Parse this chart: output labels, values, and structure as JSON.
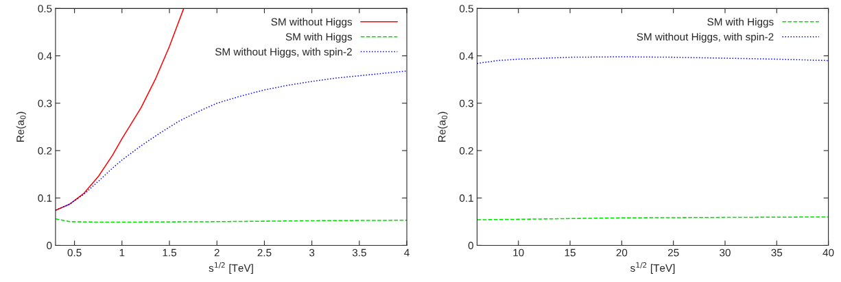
{
  "chart_data": [
    {
      "type": "line",
      "xlabel": "s$^{1/2}$ [TeV]",
      "ylabel": "Re(a$_{0}$)",
      "xlim": [
        0.3,
        4
      ],
      "ylim": [
        0,
        0.5
      ],
      "xticks": [
        0.5,
        1,
        1.5,
        2,
        2.5,
        3,
        3.5,
        4
      ],
      "yticks": [
        0,
        0.1,
        0.2,
        0.3,
        0.4,
        0.5
      ],
      "grid": false,
      "legend": "top right",
      "series": [
        {
          "name": "SM without Higgs",
          "color": "#ff0000",
          "line_style": "solid",
          "x": [
            0.3,
            0.45,
            0.6,
            0.75,
            0.9,
            1.0,
            1.2,
            1.35,
            1.5,
            1.65
          ],
          "values": [
            0.074,
            0.087,
            0.11,
            0.145,
            0.19,
            0.225,
            0.29,
            0.35,
            0.42,
            0.5
          ]
        },
        {
          "name": "SM with Higgs",
          "color": "#00dd00",
          "line_style": "dashed",
          "x": [
            0.3,
            0.45,
            0.75,
            1,
            2,
            3,
            4
          ],
          "values": [
            0.056,
            0.05,
            0.049,
            0.049,
            0.05,
            0.052,
            0.053
          ]
        },
        {
          "name": "SM without Higgs, with spin-2",
          "color": "#0000ff",
          "line_style": "dotted",
          "x": [
            0.3,
            0.45,
            0.6,
            0.75,
            0.9,
            1.0,
            1.2,
            1.4,
            1.6,
            1.8,
            2.0,
            2.25,
            2.5,
            2.75,
            3.0,
            3.25,
            3.5,
            3.75,
            4.0
          ],
          "values": [
            0.074,
            0.087,
            0.108,
            0.135,
            0.163,
            0.18,
            0.21,
            0.237,
            0.262,
            0.282,
            0.3,
            0.315,
            0.328,
            0.338,
            0.346,
            0.353,
            0.358,
            0.363,
            0.368
          ]
        }
      ]
    },
    {
      "type": "line",
      "xlabel": "s$^{1/2}$ [TeV]",
      "ylabel": "Re(a$_{0}$)",
      "xlim": [
        6,
        40
      ],
      "ylim": [
        0,
        0.5
      ],
      "xticks": [
        10,
        15,
        20,
        25,
        30,
        35,
        40
      ],
      "yticks": [
        0,
        0.1,
        0.2,
        0.3,
        0.4,
        0.5
      ],
      "grid": false,
      "legend": "top right",
      "series": [
        {
          "name": "SM with Higgs",
          "color": "#00dd00",
          "line_style": "dashed",
          "x": [
            6,
            10,
            20,
            30,
            40
          ],
          "values": [
            0.054,
            0.055,
            0.058,
            0.059,
            0.06
          ]
        },
        {
          "name": "SM without Higgs, with spin-2",
          "color": "#0000ff",
          "line_style": "dotted",
          "x": [
            6,
            8,
            10,
            15,
            20,
            25,
            30,
            35,
            40
          ],
          "values": [
            0.384,
            0.39,
            0.393,
            0.397,
            0.398,
            0.397,
            0.395,
            0.393,
            0.39
          ]
        }
      ]
    }
  ]
}
